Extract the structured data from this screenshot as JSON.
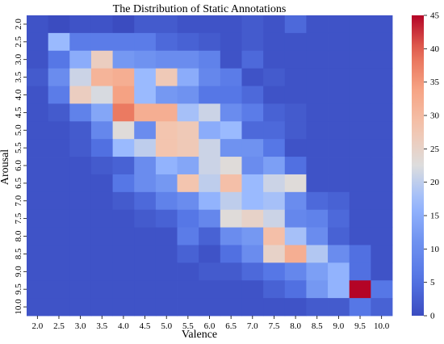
{
  "chart_data": {
    "type": "heatmap",
    "title": "The Distribution of Static Annotations",
    "xlabel": "Valence",
    "ylabel": "Arousal",
    "x_categories": [
      "2.0",
      "2.5",
      "3.0",
      "3.5",
      "4.0",
      "4.5",
      "5.0",
      "5.5",
      "6.0",
      "6.5",
      "7.0",
      "7.5",
      "8.0",
      "8.5",
      "9.0",
      "9.5",
      "10.0"
    ],
    "y_categories": [
      "2.0",
      "2.5",
      "3.0",
      "3.5",
      "4.0",
      "4.5",
      "5.0",
      "5.5",
      "6.0",
      "6.5",
      "7.0",
      "7.5",
      "8.0",
      "8.5",
      "9.0",
      "9.5",
      "10.0"
    ],
    "colormap": "coolwarm",
    "color_range": [
      0,
      45
    ],
    "colorbar_ticks": [
      "0",
      "5",
      "10",
      "15",
      "20",
      "25",
      "30",
      "35",
      "40",
      "45"
    ],
    "values": [
      [
        1,
        0,
        1,
        1,
        0,
        2,
        2,
        1,
        1,
        1,
        2,
        1,
        4,
        1,
        1,
        1,
        1
      ],
      [
        1,
        17,
        7,
        7,
        7,
        7,
        4,
        3,
        2,
        1,
        2,
        1,
        1,
        1,
        1,
        1,
        1
      ],
      [
        1,
        6,
        15,
        26,
        12,
        11,
        10,
        10,
        8,
        1,
        4,
        1,
        1,
        1,
        1,
        1,
        1
      ],
      [
        2,
        10,
        21,
        31,
        32,
        17,
        27,
        15,
        9,
        7,
        1,
        2,
        1,
        1,
        1,
        1,
        1
      ],
      [
        1,
        7,
        26,
        22,
        34,
        17,
        12,
        11,
        6,
        6,
        4,
        1,
        1,
        1,
        1,
        1,
        1
      ],
      [
        1,
        2,
        8,
        14,
        38,
        32,
        32,
        18,
        21,
        10,
        7,
        3,
        2,
        1,
        1,
        1,
        1
      ],
      [
        1,
        1,
        2,
        9,
        23,
        10,
        28,
        27,
        15,
        17,
        4,
        4,
        2,
        1,
        1,
        1,
        1
      ],
      [
        1,
        1,
        2,
        5,
        17,
        20,
        28,
        27,
        21,
        11,
        11,
        6,
        1,
        1,
        1,
        1,
        1
      ],
      [
        1,
        1,
        1,
        2,
        3,
        10,
        16,
        14,
        21,
        23,
        10,
        13,
        5,
        1,
        1,
        1,
        1
      ],
      [
        1,
        1,
        1,
        1,
        6,
        10,
        12,
        28,
        20,
        29,
        17,
        21,
        23,
        1,
        1,
        1,
        1
      ],
      [
        1,
        1,
        1,
        1,
        2,
        4,
        8,
        10,
        16,
        20,
        17,
        18,
        10,
        4,
        3,
        1,
        1
      ],
      [
        1,
        1,
        1,
        1,
        1,
        2,
        3,
        6,
        9,
        23,
        25,
        21,
        9,
        8,
        4,
        1,
        1
      ],
      [
        1,
        1,
        1,
        1,
        1,
        1,
        1,
        7,
        3,
        10,
        12,
        29,
        18,
        10,
        3,
        1,
        1
      ],
      [
        1,
        1,
        1,
        1,
        1,
        1,
        1,
        3,
        1,
        5,
        10,
        25,
        32,
        19,
        10,
        5,
        1
      ],
      [
        1,
        1,
        1,
        1,
        1,
        1,
        1,
        1,
        2,
        2,
        4,
        6,
        9,
        13,
        16,
        5,
        1
      ],
      [
        1,
        1,
        1,
        1,
        1,
        1,
        1,
        1,
        1,
        1,
        1,
        3,
        5,
        12,
        16,
        45,
        6
      ],
      [
        1,
        1,
        1,
        1,
        1,
        1,
        1,
        1,
        1,
        1,
        1,
        1,
        1,
        2,
        2,
        6,
        3
      ]
    ]
  }
}
